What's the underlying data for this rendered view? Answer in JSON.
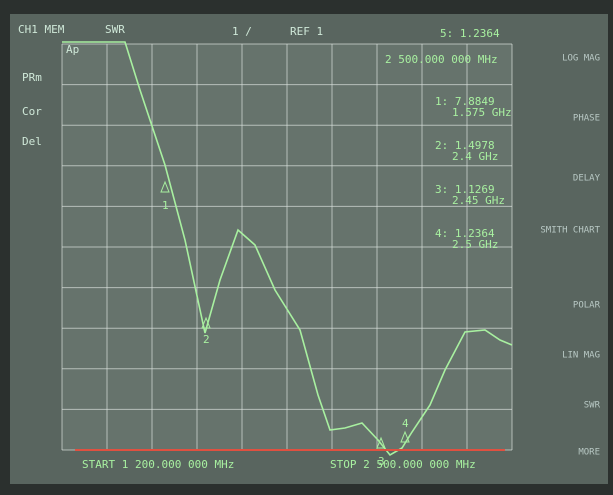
{
  "header": {
    "channel": "CH1 MEM",
    "format": "SWR",
    "scale": "1 /",
    "ref": "REF 1",
    "active_marker": "5: 1.2364",
    "active_freq": "2 500.000 000 MHz"
  },
  "left_labels": [
    "Ap",
    "PRm",
    "Cor",
    "Del"
  ],
  "markers": [
    {
      "id": "1",
      "reading": "1: 7.8849",
      "freq": "1.575 GHz"
    },
    {
      "id": "2",
      "reading": "2: 1.4978",
      "freq": "2.4 GHz"
    },
    {
      "id": "3",
      "reading": "3: 1.1269",
      "freq": "2.45 GHz"
    },
    {
      "id": "4",
      "reading": "4: 1.2364",
      "freq": "2.5 GHz"
    }
  ],
  "softkeys": [
    "LOG MAG",
    "PHASE",
    "DELAY",
    "SMITH CHART",
    "POLAR",
    "LIN MAG",
    "SWR",
    "MORE"
  ],
  "footer": {
    "start": "START 1 200.000 000 MHz",
    "stop": "STOP 2 500.000 000 MHz"
  }
}
